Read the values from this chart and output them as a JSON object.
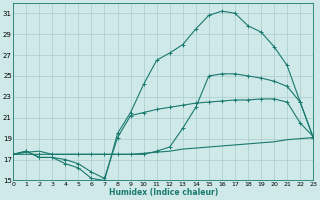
{
  "xlabel": "Humidex (Indice chaleur)",
  "bg_color": "#cfe8e8",
  "grid_color": "#aacccc",
  "line_color": "#1a7a6e",
  "xlim": [
    0,
    23
  ],
  "ylim": [
    15,
    32
  ],
  "yticks": [
    15,
    17,
    19,
    21,
    23,
    25,
    27,
    29,
    31
  ],
  "xticks": [
    0,
    1,
    2,
    3,
    4,
    5,
    6,
    7,
    8,
    9,
    10,
    11,
    12,
    13,
    14,
    15,
    16,
    17,
    18,
    19,
    20,
    21,
    22,
    23
  ],
  "line1": {
    "x": [
      0,
      1,
      2,
      3,
      4,
      5,
      6,
      7,
      8,
      9,
      10,
      11,
      12,
      13,
      14,
      15,
      16,
      17,
      18,
      19,
      20,
      21,
      22,
      23
    ],
    "y": [
      17.5,
      17.7,
      17.8,
      17.5,
      17.5,
      17.5,
      17.5,
      17.5,
      17.5,
      17.5,
      17.6,
      17.7,
      17.8,
      18.0,
      18.1,
      18.2,
      18.3,
      18.4,
      18.5,
      18.6,
      18.7,
      18.9,
      19.0,
      19.1
    ],
    "marker": false
  },
  "line2": {
    "x": [
      0,
      1,
      2,
      3,
      4,
      5,
      6,
      7,
      8,
      9,
      10,
      11,
      12,
      13,
      14,
      15,
      16,
      17,
      18,
      19,
      20,
      21,
      22,
      23
    ],
    "y": [
      17.5,
      17.8,
      17.2,
      17.2,
      17.0,
      16.6,
      15.8,
      15.2,
      19.1,
      21.2,
      21.5,
      21.8,
      22.0,
      22.2,
      22.4,
      22.5,
      22.6,
      22.7,
      22.7,
      22.8,
      22.8,
      22.5,
      20.5,
      19.2
    ],
    "marker": true
  },
  "line3": {
    "x": [
      0,
      2,
      3,
      5,
      6,
      7,
      8,
      9,
      10,
      11,
      12,
      13,
      14,
      15,
      16,
      17,
      18,
      19,
      20,
      21,
      22,
      23
    ],
    "y": [
      17.5,
      17.5,
      17.5,
      17.5,
      17.5,
      17.5,
      17.5,
      17.5,
      17.5,
      17.8,
      18.2,
      20.0,
      22.0,
      25.0,
      25.2,
      25.2,
      25.0,
      24.8,
      24.5,
      24.0,
      22.5,
      19.1
    ],
    "marker": true
  },
  "line4": {
    "x": [
      0,
      1,
      2,
      3,
      4,
      5,
      6,
      7,
      8,
      9,
      10,
      11,
      12,
      13,
      14,
      15,
      16,
      17,
      18,
      19,
      20,
      21,
      22,
      23
    ],
    "y": [
      17.5,
      17.8,
      17.2,
      17.2,
      16.6,
      16.2,
      15.2,
      15.0,
      19.5,
      21.5,
      24.2,
      26.5,
      27.2,
      28.0,
      29.5,
      30.8,
      31.2,
      31.0,
      29.8,
      29.2,
      27.8,
      26.0,
      22.5,
      19.1
    ],
    "marker": true
  }
}
